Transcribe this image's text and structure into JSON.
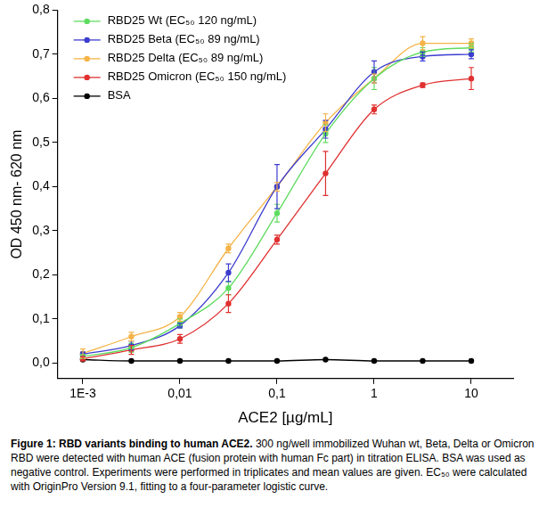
{
  "chart_data": {
    "type": "scatter",
    "x_label": "ACE2 [µg/mL]",
    "y_label": "OD 450 nm- 620 nm",
    "log": "x",
    "grid": false,
    "legend": "upper left",
    "x": [
      0.001,
      0.00316,
      0.01,
      0.0316,
      0.1,
      0.316,
      1,
      3.16,
      10
    ],
    "xlim": [
      0.00055,
      27
    ],
    "xticks": [
      {
        "value": 0.001,
        "label": "1E-3"
      },
      {
        "value": 0.01,
        "label": "0,01"
      },
      {
        "value": 0.1,
        "label": "0,1"
      },
      1,
      10
    ],
    "ylim": [
      -0.035,
      0.8
    ],
    "yticks": [
      {
        "value": 0,
        "label": "0,0"
      },
      {
        "value": 0.1,
        "label": "0,1"
      },
      {
        "value": 0.2,
        "label": "0,2"
      },
      {
        "value": 0.3,
        "label": "0,3"
      },
      {
        "value": 0.4,
        "label": "0,4"
      },
      {
        "value": 0.5,
        "label": "0,5"
      },
      {
        "value": 0.6,
        "label": "0,6"
      },
      {
        "value": 0.7,
        "label": "0,7"
      },
      {
        "value": 0.8,
        "label": "0,8"
      }
    ],
    "series": [
      {
        "name": "RBD25 Wt (EC₅₀ 120 ng/mL)",
        "color": "#5fdc5f",
        "marker": "circle",
        "line_style": "solid",
        "values": [
          0.015,
          0.035,
          0.09,
          0.17,
          0.34,
          0.52,
          0.645,
          0.705,
          0.715
        ],
        "errors": [
          0.005,
          0.01,
          0.01,
          0.015,
          0.02,
          0.02,
          0.025,
          0.01,
          0.01
        ]
      },
      {
        "name": "RBD25 Beta (EC₅₀ 89 ng/mL)",
        "color": "#3c3ccf",
        "marker": "circle",
        "line_style": "solid",
        "values": [
          0.02,
          0.04,
          0.085,
          0.205,
          0.4,
          0.53,
          0.66,
          0.695,
          0.7
        ],
        "errors": [
          0.005,
          0.01,
          0.005,
          0.02,
          0.05,
          0.02,
          0.025,
          0.01,
          0.01
        ]
      },
      {
        "name": "RBD25 Delta (EC₅₀ 89 ng/mL)",
        "color": "#f5b347",
        "marker": "circle",
        "line_style": "solid",
        "values": [
          0.022,
          0.06,
          0.105,
          0.26,
          0.4,
          0.545,
          0.645,
          0.725,
          0.725
        ],
        "errors": [
          0.01,
          0.01,
          0.01,
          0.01,
          0.01,
          0.02,
          0.01,
          0.015,
          0.01
        ]
      },
      {
        "name": "RBD25 Omicron (EC₅₀ 150 ng/mL)",
        "color": "#e03030",
        "marker": "circle",
        "line_style": "solid",
        "values": [
          0.01,
          0.03,
          0.055,
          0.135,
          0.28,
          0.43,
          0.575,
          0.63,
          0.645
        ],
        "errors": [
          0.005,
          0.01,
          0.01,
          0.02,
          0.01,
          0.05,
          0.01,
          0.005,
          0.025
        ]
      },
      {
        "name": "BSA",
        "color": "#000000",
        "marker": "circle",
        "line_style": "solid",
        "values": [
          0.008,
          0.005,
          0.005,
          0.005,
          0.005,
          0.008,
          0.005,
          0.005,
          0.005
        ],
        "errors": [
          0,
          0,
          0,
          0,
          0,
          0,
          0,
          0,
          0
        ]
      }
    ]
  },
  "caption": {
    "title": "Figure 1: RBD variants binding to human ACE2.",
    "text": "300 ng/well immobilized Wuhan wt, Beta, Delta or Omicron RBD were detected with human ACE (fusion protein with human Fc part) in titration ELISA. BSA was used as negative control. Experiments were performed in triplicates and mean values are given. EC₅₀ were calculated with OriginPro Version 9.1, fitting to a four-parameter logistic curve."
  }
}
